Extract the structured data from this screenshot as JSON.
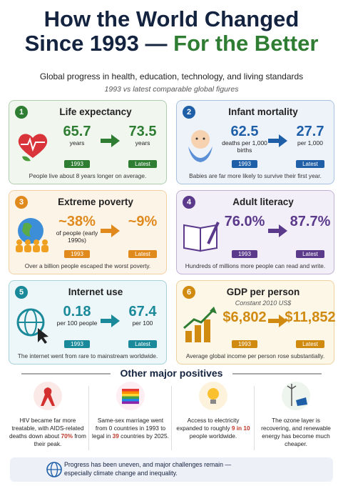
{
  "header": {
    "title_line1": "How the World Changed",
    "title_line2": "Since 1993 —",
    "title_highlight": "For the Better",
    "subtitle": "Global progress in health, education, technology, and living standards",
    "note": "1993 vs latest comparable global figures"
  },
  "cards": [
    {
      "number": "1",
      "title": "Life expectancy",
      "color": "#2e7d32",
      "background": "#f1f7ef",
      "before": {
        "value": "65.7",
        "unit": "years",
        "tag": "1993"
      },
      "after": {
        "value": "73.5",
        "unit": "years",
        "tag": "Latest"
      },
      "caption": "People live about 8 years longer on average."
    },
    {
      "number": "2",
      "title": "Infant mortality",
      "color": "#1e5fa8",
      "background": "#eef3fa",
      "before": {
        "value": "62.5",
        "unit": "deaths per 1,000 births",
        "tag": "1993"
      },
      "after": {
        "value": "27.7",
        "unit": "per 1,000",
        "tag": "Latest"
      },
      "caption": "Babies are far more likely to survive their first year."
    },
    {
      "number": "3",
      "title": "Extreme poverty",
      "color": "#e08a1e",
      "background": "#fdf4e8",
      "before": {
        "value": "~38%",
        "unit": "of people (early 1990s)",
        "tag": "1993"
      },
      "after": {
        "value": "~9%",
        "tag": "Latest"
      },
      "caption": "Over a billion people escaped the worst poverty."
    },
    {
      "number": "4",
      "title": "Adult literacy",
      "color": "#5b3a8c",
      "background": "#f3eff8",
      "before": {
        "value": "76.0%",
        "tag": "1993"
      },
      "after": {
        "value": "87.7%",
        "tag": "Latest"
      },
      "caption": "Hundreds of millions more people can read and write."
    },
    {
      "number": "5",
      "title": "Internet use",
      "color": "#1a8a9a",
      "background": "#edf6f8",
      "before": {
        "value": "0.18",
        "unit": "per 100 people",
        "tag": "1993"
      },
      "after": {
        "value": "67.4",
        "unit": "per 100",
        "tag": "Latest"
      },
      "caption": "The internet went from rare to mainstream worldwide."
    },
    {
      "number": "6",
      "title": "GDP per person",
      "subtitle": "Constant 2010 US$",
      "color": "#d08a10",
      "background": "#fdf7e8",
      "before": {
        "value": "$6,802",
        "tag": "1993"
      },
      "after": {
        "value": "$11,852",
        "tag": "Latest"
      },
      "caption": "Average global income per person rose substantially."
    }
  ],
  "other": {
    "heading": "Other major positives",
    "items": [
      {
        "parts": [
          "HIV became far more treatable, with AIDS-related deaths down about ",
          "70%",
          " from their peak."
        ]
      },
      {
        "parts": [
          "Same-sex marriage went from 0 countries in 1993 to legal in ",
          "39",
          " countries by 2025."
        ]
      },
      {
        "parts": [
          "Access to electricity expanded to roughly ",
          "9 in 10",
          " people worldwide."
        ]
      },
      {
        "parts": [
          "The ozone layer is recovering, and renewable energy has become much cheaper."
        ]
      }
    ]
  },
  "footer": {
    "text": "Progress has been uneven, and major challenges remain — especially climate change and inequality."
  }
}
